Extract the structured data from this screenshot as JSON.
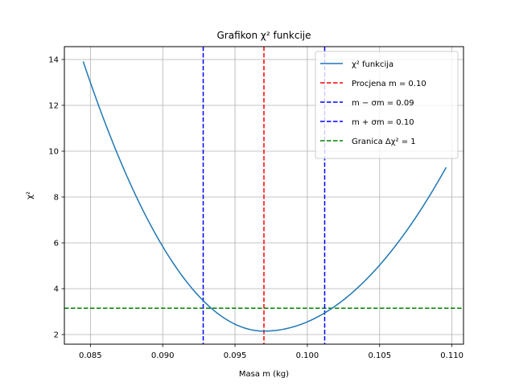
{
  "chart_data": {
    "type": "line",
    "title": "Grafikon χ² funkcije",
    "xlabel": "Masa m (kg)",
    "ylabel": "χ²",
    "xlim": [
      0.0832,
      0.1108
    ],
    "ylim": [
      1.58,
      14.56
    ],
    "grid": true,
    "xticks": [
      0.085,
      0.09,
      0.095,
      0.1,
      0.105,
      0.11
    ],
    "xtick_labels": [
      "0.085",
      "0.090",
      "0.095",
      "0.100",
      "0.105",
      "0.110"
    ],
    "yticks": [
      2,
      4,
      6,
      8,
      10,
      12,
      14
    ],
    "ytick_labels": [
      "2",
      "4",
      "6",
      "8",
      "10",
      "12",
      "14"
    ],
    "curve": {
      "name": "χ² funkcija",
      "color": "#1f77b4",
      "x_start": 0.0845,
      "x_end": 0.1096,
      "min_x": 0.097,
      "min_y": 2.15,
      "left_coef": 75300,
      "right_coef": 45000,
      "sample_x": [
        0.0845,
        0.0875,
        0.0905,
        0.0928,
        0.095,
        0.097,
        0.099,
        0.1012,
        0.104,
        0.107,
        0.1096
      ],
      "sample_y": [
        14.0,
        8.82,
        5.06,
        3.13,
        2.45,
        2.15,
        2.33,
        3.08,
        4.38,
        6.65,
        9.21
      ]
    },
    "vlines": [
      {
        "name": "Procjena m = 0.10",
        "x": 0.097,
        "color": "#ff0000"
      },
      {
        "name": "m − σm = 0.09",
        "x": 0.0928,
        "color": "#0000ff"
      },
      {
        "name": "m + σm = 0.10",
        "x": 0.1012,
        "color": "#0000ff"
      }
    ],
    "hline": {
      "name": "Granica Δχ² = 1",
      "y": 3.15,
      "color": "#008000"
    },
    "legend": {
      "position": "top-right",
      "entries": [
        {
          "label": "χ² funkcija",
          "style": "solid",
          "color": "#1f77b4"
        },
        {
          "label": "Procjena m = 0.10",
          "style": "dashed",
          "color": "#ff0000"
        },
        {
          "label": "m − σm = 0.09",
          "style": "dashed",
          "color": "#0000ff"
        },
        {
          "label": "m + σm = 0.10",
          "style": "dashed",
          "color": "#0000ff"
        },
        {
          "label": "Granica Δχ² = 1",
          "style": "dashed",
          "color": "#008000"
        }
      ]
    }
  }
}
